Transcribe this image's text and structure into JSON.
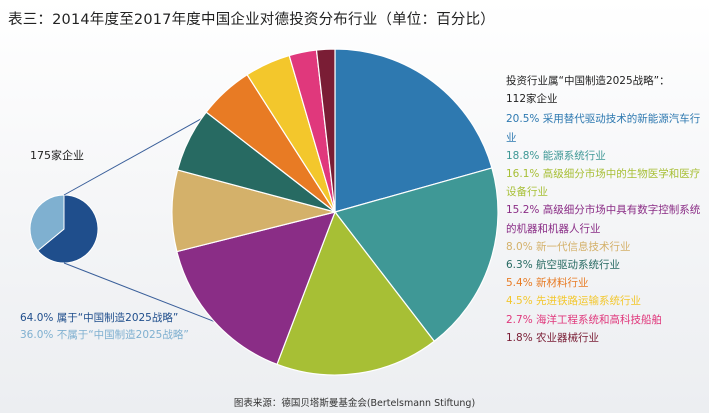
{
  "title": "表三：2014年度至2017年度中国企业对德投资分布行业（单位：百分比）",
  "source": "图表来源：德国贝塔斯曼基金会(Bertelsmann Stiftung)",
  "chart_data": [
    {
      "type": "pie",
      "title": "175家企业",
      "slices": [
        {
          "label": "属于“中国制造2025战略”",
          "value": 64.0,
          "value_label": "64.0%",
          "color": "#1f4e8c"
        },
        {
          "label": "不属于“中国制造2025战略”",
          "value": 36.0,
          "value_label": "36.0%",
          "color": "#7fb0d0"
        }
      ]
    },
    {
      "type": "pie",
      "title": "投资行业属“中国制造2025战略”：",
      "subtitle": "112家企业",
      "slices": [
        {
          "label": "采用替代驱动技术的新能源汽车行业",
          "value": 20.5,
          "value_label": "20.5%",
          "color": "#2e79b0"
        },
        {
          "label": "能源系统行业",
          "value": 18.8,
          "value_label": "18.8%",
          "color": "#3f9896"
        },
        {
          "label": "高级细分市场中的生物医学和医疗设备行业",
          "value": 16.1,
          "value_label": "16.1%",
          "color": "#a7bf35"
        },
        {
          "label": "高级细分市场中具有数字控制系统的机器和机器人行业",
          "value": 15.2,
          "value_label": "15.2%",
          "color": "#8a2d86"
        },
        {
          "label": "新一代信息技术行业",
          "value": 8.0,
          "value_label": "8.0%",
          "color": "#d4b16a"
        },
        {
          "label": "航空驱动系统行业",
          "value": 6.3,
          "value_label": "6.3%",
          "color": "#276a62"
        },
        {
          "label": "新材料行业",
          "value": 5.4,
          "value_label": "5.4%",
          "color": "#e87b24"
        },
        {
          "label": "先进铁路运输系统行业",
          "value": 4.5,
          "value_label": "4.5%",
          "color": "#f3c72c"
        },
        {
          "label": "海洋工程系统和高科技船舶",
          "value": 2.7,
          "value_label": "2.7%",
          "color": "#e0387c"
        },
        {
          "label": "农业器械行业",
          "value": 1.8,
          "value_label": "1.8%",
          "color": "#7a1d35"
        }
      ]
    }
  ]
}
